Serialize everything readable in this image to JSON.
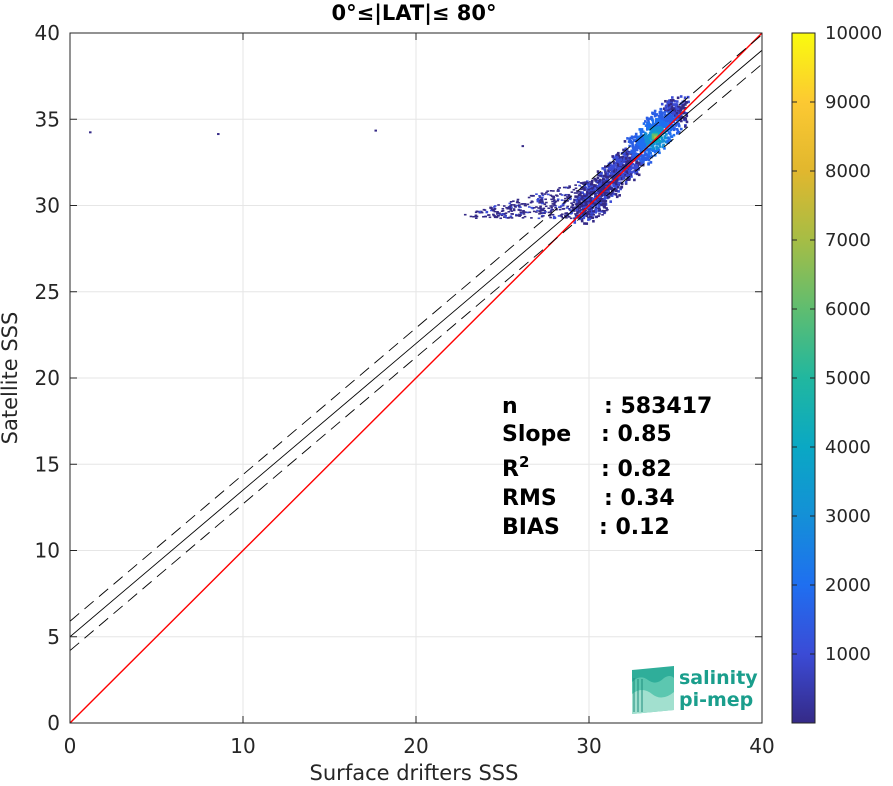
{
  "chart_data": {
    "type": "heatmap",
    "title": "0°≤|LAT|≤ 80°",
    "xlabel": "Surface drifters SSS",
    "ylabel": "Satellite SSS",
    "xlim": [
      0,
      40
    ],
    "ylim": [
      0,
      40
    ],
    "xticks": [
      "0",
      "10",
      "20",
      "30",
      "40"
    ],
    "yticks": [
      "0",
      "5",
      "10",
      "15",
      "20",
      "25",
      "30",
      "35",
      "40"
    ],
    "grid": true,
    "colormap": "parula",
    "colorbar": {
      "range": [
        0,
        10000
      ],
      "ticks": [
        "1000",
        "2000",
        "3000",
        "4000",
        "5000",
        "6000",
        "7000",
        "8000",
        "9000",
        "10000"
      ]
    },
    "lines": [
      {
        "name": "1:1",
        "color": "#ff0000",
        "style": "solid",
        "x": [
          0,
          40
        ],
        "y": [
          0,
          40
        ]
      },
      {
        "name": "fit",
        "color": "#000000",
        "style": "solid",
        "x": [
          0,
          40
        ],
        "y": [
          5.0,
          39.0
        ]
      },
      {
        "name": "fit-upper",
        "color": "#000000",
        "style": "dashed",
        "x": [
          0,
          40
        ],
        "y": [
          5.9,
          39.9
        ]
      },
      {
        "name": "fit-lower",
        "color": "#000000",
        "style": "dashed",
        "x": [
          0,
          40
        ],
        "y": [
          4.2,
          38.2
        ]
      }
    ],
    "density": {
      "core_start": [
        29.5,
        29.5
      ],
      "core_end": [
        35.2,
        35.5
      ],
      "core_peak": [
        33.8,
        34.0
      ],
      "outliers": [
        [
          1.1,
          34.3
        ],
        [
          8.5,
          34.2
        ],
        [
          17.6,
          34.4
        ],
        [
          26.1,
          33.5
        ]
      ]
    },
    "stats": [
      {
        "label": "n",
        "value": ": 583417"
      },
      {
        "label": "Slope",
        "value": ": 0.85"
      },
      {
        "label": "R",
        "sup": "2",
        "value": ": 0.82"
      },
      {
        "label": "RMS",
        "value": ": 0.34"
      },
      {
        "label": "BIAS",
        "value": ": 0.12"
      }
    ]
  },
  "logo": {
    "line1": "salinity",
    "line2": "pi-mep",
    "color": "#1a9e8c"
  }
}
